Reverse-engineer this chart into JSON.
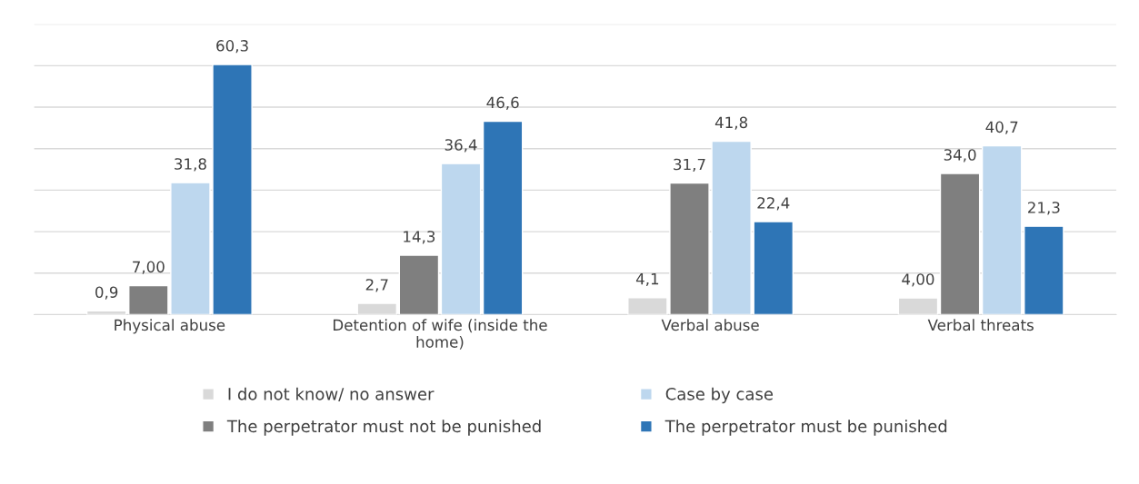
{
  "chart_data": {
    "type": "bar",
    "categories": [
      "Physical abuse",
      "Detention of wife (inside the\nhome)",
      "Verbal abuse",
      "Verbal threats"
    ],
    "series": [
      {
        "name": "I do not know/ no answer",
        "color": "#d9d9d9",
        "values": [
          0.9,
          2.7,
          4.1,
          4.0
        ],
        "value_labels": [
          "0,9",
          "2,7",
          "4,1",
          "4,00"
        ]
      },
      {
        "name": "The perpetrator must not be punished",
        "color": "#7f7f7f",
        "values": [
          7.0,
          14.3,
          31.7,
          34.0
        ],
        "value_labels": [
          "7,00",
          "14,3",
          "31,7",
          "34,0"
        ]
      },
      {
        "name": "Case by case",
        "color": "#bdd7ee",
        "values": [
          31.8,
          36.4,
          41.8,
          40.7
        ],
        "value_labels": [
          "31,8",
          "36,4",
          "41,8",
          "40,7"
        ]
      },
      {
        "name": "The perpetrator must be punished",
        "color": "#2e75b6",
        "values": [
          60.3,
          46.6,
          22.4,
          21.3
        ],
        "value_labels": [
          "60,3",
          "46,6",
          "22,4",
          "21,3"
        ]
      }
    ],
    "ylim": [
      0,
      70
    ],
    "yticks": [
      {
        "value": 0,
        "label": null
      },
      {
        "value": 10,
        "label": null
      },
      {
        "value": 20,
        "label": null
      },
      {
        "value": 30,
        "label": null
      },
      {
        "value": 40,
        "label": null
      },
      {
        "value": 50,
        "label": null
      },
      {
        "value": 60,
        "label": null
      },
      {
        "value": 70,
        "label": null
      }
    ],
    "grid": "y",
    "legend": "bottom",
    "tick_labels": "x"
  }
}
